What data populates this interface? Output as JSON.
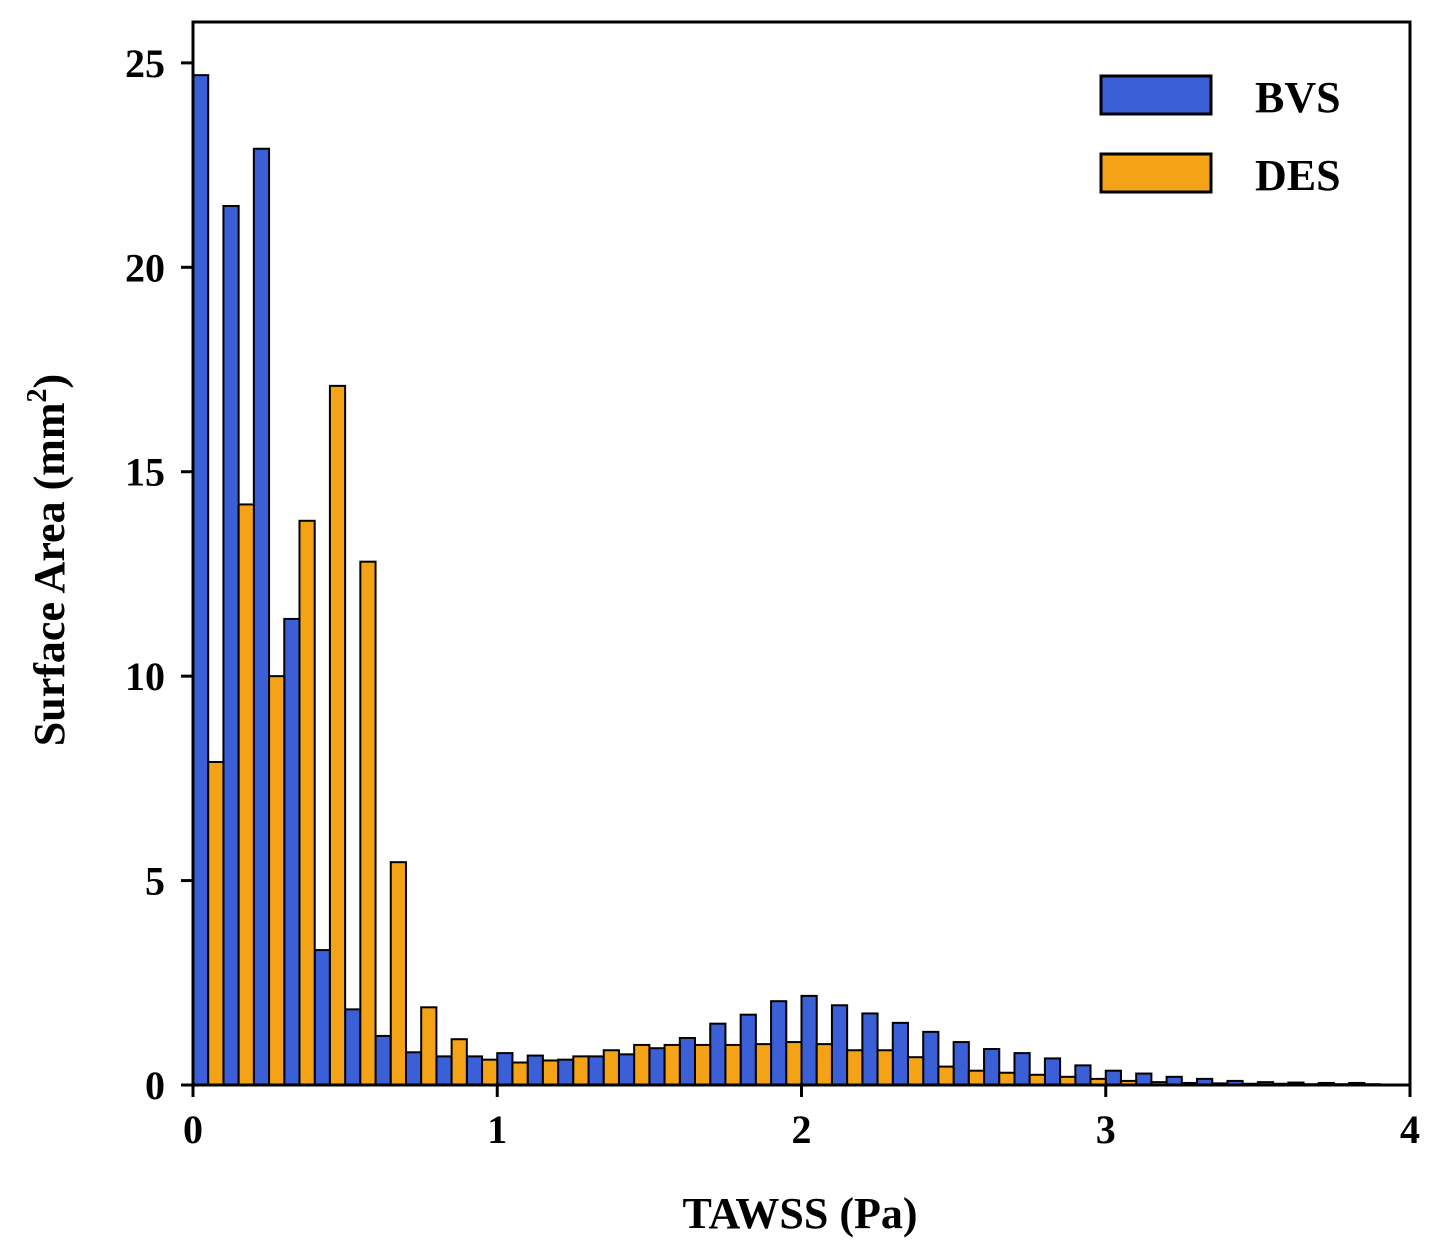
{
  "chart_data": {
    "type": "bar",
    "xlabel": "TAWSS (Pa)",
    "ylabel": {
      "main": "Surface Area (mm",
      "superscript": "2",
      "close": ")"
    },
    "xlim": [
      0,
      4
    ],
    "ylim": [
      0,
      26
    ],
    "xticks": [
      0,
      1,
      2,
      3,
      4
    ],
    "yticks": [
      0,
      5,
      10,
      15,
      20,
      25
    ],
    "grid": false,
    "legend_position": "top-right",
    "bin_width": 0.1,
    "x": [
      0.05,
      0.15,
      0.25,
      0.35,
      0.45,
      0.55,
      0.65,
      0.75,
      0.85,
      0.95,
      1.05,
      1.15,
      1.25,
      1.35,
      1.45,
      1.55,
      1.65,
      1.75,
      1.85,
      1.95,
      2.05,
      2.15,
      2.25,
      2.35,
      2.45,
      2.55,
      2.65,
      2.75,
      2.85,
      2.95,
      3.05,
      3.15,
      3.25,
      3.35,
      3.45,
      3.55,
      3.65,
      3.75,
      3.85
    ],
    "series": [
      {
        "name": "BVS",
        "color": "#3a5fd6",
        "values": [
          24.7,
          21.5,
          22.9,
          11.4,
          3.3,
          1.85,
          1.2,
          0.8,
          0.7,
          0.7,
          0.78,
          0.72,
          0.62,
          0.7,
          0.75,
          0.9,
          1.15,
          1.5,
          1.72,
          2.05,
          2.18,
          1.95,
          1.75,
          1.52,
          1.3,
          1.05,
          0.88,
          0.78,
          0.65,
          0.48,
          0.35,
          0.28,
          0.2,
          0.15,
          0.1,
          0.07,
          0.06,
          0.05,
          0.05
        ]
      },
      {
        "name": "DES",
        "color": "#f5a316",
        "values": [
          7.9,
          14.2,
          10.0,
          13.8,
          17.1,
          12.8,
          5.45,
          1.9,
          1.12,
          0.62,
          0.55,
          0.6,
          0.7,
          0.85,
          0.98,
          0.98,
          0.98,
          0.98,
          1.0,
          1.05,
          1.0,
          0.85,
          0.85,
          0.68,
          0.45,
          0.35,
          0.3,
          0.25,
          0.2,
          0.15,
          0.1,
          0.07,
          0.05,
          0.04,
          0.03,
          0.03,
          0.02,
          0.02,
          0.02
        ]
      }
    ]
  }
}
